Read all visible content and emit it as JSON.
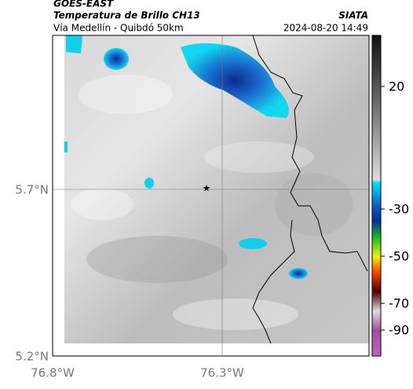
{
  "header": {
    "satellite": "GOES-EAST",
    "title": "Temperatura de Brillo CH13",
    "subtitle": "Vía Medellín - Quibdó 50km",
    "source": "SIATA",
    "timestamp": "2024-08-20 14:49"
  },
  "map": {
    "lat_labels": [
      "5.7°N",
      "5.2°N"
    ],
    "lon_labels": [
      "76.8°W",
      "76.3°W"
    ]
  },
  "colorbar": {
    "ticks": [
      "20",
      "-30",
      "-50",
      "-70",
      "-90"
    ]
  }
}
